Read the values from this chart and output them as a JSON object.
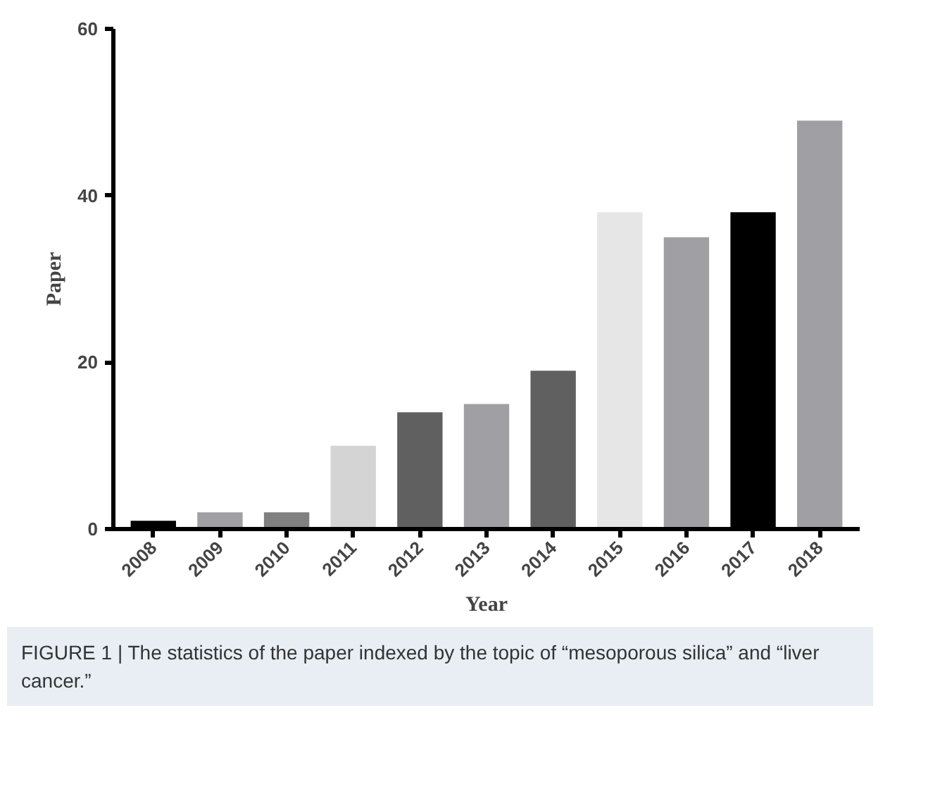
{
  "chart_data": {
    "type": "bar",
    "xlabel": "Year",
    "ylabel": "Paper",
    "categories": [
      "2008",
      "2009",
      "2010",
      "2011",
      "2012",
      "2013",
      "2014",
      "2015",
      "2016",
      "2017",
      "2018"
    ],
    "values": [
      1,
      2,
      2,
      10,
      14,
      15,
      19,
      38,
      35,
      38,
      49
    ],
    "colors": [
      "#000000",
      "#a0a0a4",
      "#808080",
      "#d4d4d4",
      "#606060",
      "#a0a0a4",
      "#606060",
      "#e6e6e6",
      "#a0a0a4",
      "#000000",
      "#a0a0a4"
    ],
    "ylim": [
      0,
      60
    ],
    "yticks": [
      0,
      20,
      40,
      60
    ],
    "grid": false,
    "annotations": [
      "FIGURE 1 | The statistics of the paper indexed by the topic of “mesoporous silica” and “liver cancer.”"
    ]
  }
}
